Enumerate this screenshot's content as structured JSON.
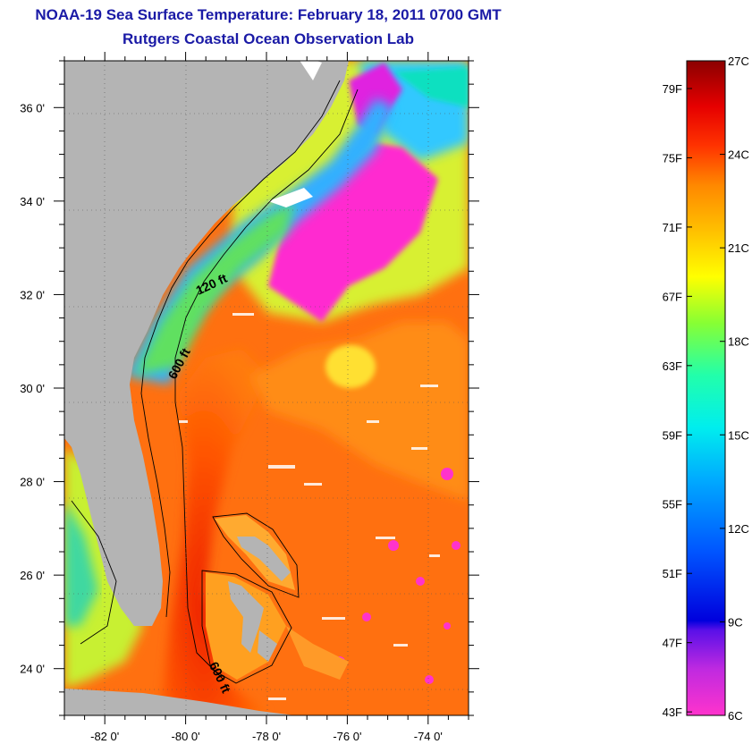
{
  "title": "NOAA-19 Sea Surface Temperature:  February 18, 2011 0700 GMT",
  "subtitle": "Rutgers Coastal Ocean Observation Lab",
  "map": {
    "lon_range": [
      -83,
      -73
    ],
    "lat_range": [
      23,
      37
    ],
    "lon_ticks": [
      {
        "value": -82,
        "label": "-82 0'"
      },
      {
        "value": -80,
        "label": "-80 0'"
      },
      {
        "value": -78,
        "label": "-78 0'"
      },
      {
        "value": -76,
        "label": "-76 0'"
      },
      {
        "value": -74,
        "label": "-74 0'"
      }
    ],
    "lat_ticks": [
      {
        "value": 36,
        "label": "36 0'"
      },
      {
        "value": 34,
        "label": "34 0'"
      },
      {
        "value": 32,
        "label": "32 0'"
      },
      {
        "value": 30,
        "label": "30 0'"
      },
      {
        "value": 28,
        "label": "28 0'"
      },
      {
        "value": 26,
        "label": "26 0'"
      },
      {
        "value": 24,
        "label": "24 0'"
      }
    ],
    "contour_labels": [
      "120 ft",
      "600 ft",
      "600 ft"
    ],
    "land_color": "#b4b4b4",
    "grid": "dotted"
  },
  "colorbar": {
    "celsius_range": [
      6,
      27
    ],
    "fahrenheit_labels": [
      "79F",
      "75F",
      "71F",
      "67F",
      "63F",
      "59F",
      "55F",
      "51F",
      "47F",
      "43F"
    ],
    "celsius_labels": [
      "27C",
      "24C",
      "21C",
      "18C",
      "15C",
      "12C",
      "9C",
      "6C"
    ],
    "colors": [
      "#ff33cc",
      "#a020f0",
      "#0000cc",
      "#0066ff",
      "#00ccff",
      "#00ffcc",
      "#66ff33",
      "#ffff00",
      "#ffaa00",
      "#ff5500",
      "#e60000",
      "#8b0000"
    ]
  }
}
